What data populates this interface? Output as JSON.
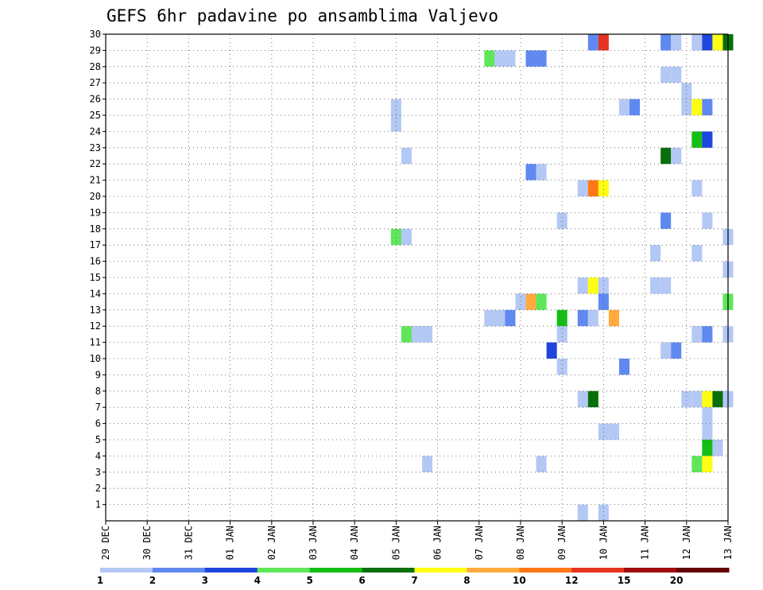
{
  "chart_data": {
    "type": "heatmap",
    "title": "GEFS 6hr padavine po ansamblima Valjevo",
    "x_unit": "6-hour steps from 29 DEC 00Z",
    "x_range": [
      0,
      60
    ],
    "x_tick_labels": [
      "29 DEC",
      "30 DEC",
      "31 DEC",
      "01 JAN",
      "02 JAN",
      "03 JAN",
      "04 JAN",
      "05 JAN",
      "06 JAN",
      "07 JAN",
      "08 JAN",
      "09 JAN",
      "10 JAN",
      "11 JAN",
      "12 JAN",
      "13 JAN"
    ],
    "y_range": [
      0,
      30
    ],
    "y_tick_labels": [
      "1",
      "2",
      "3",
      "4",
      "5",
      "6",
      "7",
      "8",
      "9",
      "10",
      "11",
      "12",
      "13",
      "14",
      "15",
      "16",
      "17",
      "18",
      "19",
      "20",
      "21",
      "22",
      "23",
      "24",
      "25",
      "26",
      "27",
      "28",
      "29",
      "30"
    ],
    "grid": true,
    "colorbar": {
      "levels": [
        "1",
        "2",
        "3",
        "4",
        "5",
        "6",
        "7",
        "8",
        "10",
        "12",
        "15",
        "20"
      ],
      "colors": [
        "#b4c8f5",
        "#5f88f0",
        "#1e46dc",
        "#5fe65a",
        "#14be14",
        "#0a6e0a",
        "#ffff14",
        "#ffaa3c",
        "#ff7814",
        "#e6321e",
        "#a00a0a",
        "#640000"
      ]
    },
    "cells": [
      [
        47,
        29,
        1
      ],
      [
        48,
        29,
        9
      ],
      [
        54,
        29,
        1
      ],
      [
        55,
        29,
        0
      ],
      [
        57,
        29,
        0
      ],
      [
        58,
        29,
        2
      ],
      [
        59,
        29,
        6
      ],
      [
        60,
        29,
        5
      ],
      [
        37,
        28,
        3
      ],
      [
        38,
        28,
        0
      ],
      [
        39,
        28,
        0
      ],
      [
        41,
        28,
        1
      ],
      [
        42,
        28,
        1
      ],
      [
        54,
        27,
        0
      ],
      [
        55,
        27,
        0
      ],
      [
        56,
        26,
        0
      ],
      [
        28,
        25,
        0
      ],
      [
        50,
        25,
        0
      ],
      [
        51,
        25,
        1
      ],
      [
        56,
        25,
        0
      ],
      [
        57,
        25,
        6
      ],
      [
        58,
        25,
        1
      ],
      [
        28,
        24,
        0
      ],
      [
        57,
        23,
        4
      ],
      [
        58,
        23,
        2
      ],
      [
        29,
        22,
        0
      ],
      [
        54,
        22,
        5
      ],
      [
        55,
        22,
        0
      ],
      [
        41,
        21,
        1
      ],
      [
        42,
        21,
        0
      ],
      [
        46,
        20,
        0
      ],
      [
        47,
        20,
        8
      ],
      [
        48,
        20,
        6
      ],
      [
        57,
        20,
        0
      ],
      [
        44,
        18,
        0
      ],
      [
        54,
        18,
        1
      ],
      [
        58,
        18,
        0
      ],
      [
        28,
        17,
        3
      ],
      [
        29,
        17,
        0
      ],
      [
        60,
        17,
        0
      ],
      [
        53,
        16,
        0
      ],
      [
        57,
        16,
        0
      ],
      [
        60,
        15,
        0
      ],
      [
        46,
        14,
        0
      ],
      [
        47,
        14,
        6
      ],
      [
        48,
        14,
        0
      ],
      [
        53,
        14,
        0
      ],
      [
        54,
        14,
        0
      ],
      [
        40,
        13,
        0
      ],
      [
        41,
        13,
        7
      ],
      [
        42,
        13,
        3
      ],
      [
        48,
        13,
        1
      ],
      [
        60,
        13,
        3
      ],
      [
        37,
        12,
        0
      ],
      [
        38,
        12,
        0
      ],
      [
        39,
        12,
        1
      ],
      [
        44,
        12,
        4
      ],
      [
        46,
        12,
        1
      ],
      [
        47,
        12,
        0
      ],
      [
        49,
        12,
        7
      ],
      [
        29,
        11,
        3
      ],
      [
        30,
        11,
        0
      ],
      [
        31,
        11,
        0
      ],
      [
        44,
        11,
        0
      ],
      [
        57,
        11,
        0
      ],
      [
        58,
        11,
        1
      ],
      [
        60,
        11,
        0
      ],
      [
        43,
        10,
        2
      ],
      [
        54,
        10,
        0
      ],
      [
        55,
        10,
        1
      ],
      [
        44,
        9,
        0
      ],
      [
        50,
        9,
        1
      ],
      [
        46,
        7,
        0
      ],
      [
        47,
        7,
        5
      ],
      [
        56,
        7,
        0
      ],
      [
        57,
        7,
        0
      ],
      [
        58,
        7,
        6
      ],
      [
        59,
        7,
        5
      ],
      [
        60,
        7,
        0
      ],
      [
        58,
        6,
        0
      ],
      [
        48,
        5,
        0
      ],
      [
        49,
        5,
        0
      ],
      [
        58,
        5,
        0
      ],
      [
        58,
        4,
        4
      ],
      [
        59,
        4,
        0
      ],
      [
        31,
        3,
        0
      ],
      [
        42,
        3,
        0
      ],
      [
        57,
        3,
        3
      ],
      [
        58,
        3,
        6
      ],
      [
        46,
        0,
        0
      ],
      [
        48,
        0,
        0
      ]
    ]
  }
}
